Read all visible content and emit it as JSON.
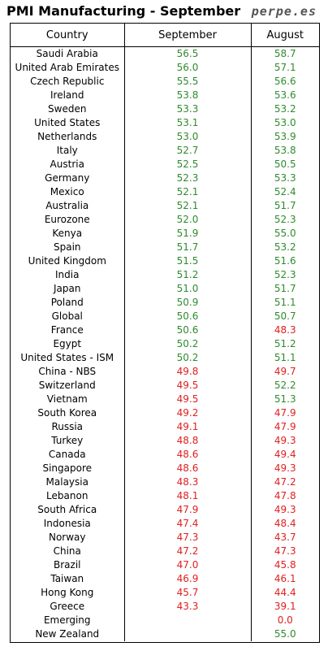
{
  "title": "PMI Manufacturing - September",
  "brand": "perpe.es",
  "colors": {
    "above_50": "#2e8b2e",
    "below_50": "#e02020"
  },
  "chart_data": {
    "type": "table",
    "columns": [
      "Country",
      "September",
      "August"
    ],
    "rows": [
      {
        "country": "Saudi Arabia",
        "september": "56.5",
        "august": "58.7"
      },
      {
        "country": "United Arab Emirates",
        "september": "56.0",
        "august": "57.1"
      },
      {
        "country": "Czech Republic",
        "september": "55.5",
        "august": "56.6"
      },
      {
        "country": "Ireland",
        "september": "53.8",
        "august": "53.6"
      },
      {
        "country": "Sweden",
        "september": "53.3",
        "august": "53.2"
      },
      {
        "country": "United States",
        "september": "53.1",
        "august": "53.0"
      },
      {
        "country": "Netherlands",
        "september": "53.0",
        "august": "53.9"
      },
      {
        "country": "Italy",
        "september": "52.7",
        "august": "53.8"
      },
      {
        "country": "Austria",
        "september": "52.5",
        "august": "50.5"
      },
      {
        "country": "Germany",
        "september": "52.3",
        "august": "53.3"
      },
      {
        "country": "Mexico",
        "september": "52.1",
        "august": "52.4"
      },
      {
        "country": "Australia",
        "september": "52.1",
        "august": "51.7"
      },
      {
        "country": "Eurozone",
        "september": "52.0",
        "august": "52.3"
      },
      {
        "country": "Kenya",
        "september": "51.9",
        "august": "55.0"
      },
      {
        "country": "Spain",
        "september": "51.7",
        "august": "53.2"
      },
      {
        "country": "United Kingdom",
        "september": "51.5",
        "august": "51.6"
      },
      {
        "country": "India",
        "september": "51.2",
        "august": "52.3"
      },
      {
        "country": "Japan",
        "september": "51.0",
        "august": "51.7"
      },
      {
        "country": "Poland",
        "september": "50.9",
        "august": "51.1"
      },
      {
        "country": "Global",
        "september": "50.6",
        "august": "50.7"
      },
      {
        "country": "France",
        "september": "50.6",
        "august": "48.3"
      },
      {
        "country": "Egypt",
        "september": "50.2",
        "august": "51.2"
      },
      {
        "country": "United States - ISM",
        "september": "50.2",
        "august": "51.1"
      },
      {
        "country": "China - NBS",
        "september": "49.8",
        "august": "49.7"
      },
      {
        "country": "Switzerland",
        "september": "49.5",
        "august": "52.2"
      },
      {
        "country": "Vietnam",
        "september": "49.5",
        "august": "51.3"
      },
      {
        "country": "South Korea",
        "september": "49.2",
        "august": "47.9"
      },
      {
        "country": "Russia",
        "september": "49.1",
        "august": "47.9"
      },
      {
        "country": "Turkey",
        "september": "48.8",
        "august": "49.3"
      },
      {
        "country": "Canada",
        "september": "48.6",
        "august": "49.4"
      },
      {
        "country": "Singapore",
        "september": "48.6",
        "august": "49.3"
      },
      {
        "country": "Malaysia",
        "september": "48.3",
        "august": "47.2"
      },
      {
        "country": "Lebanon",
        "september": "48.1",
        "august": "47.8"
      },
      {
        "country": "South Africa",
        "september": "47.9",
        "august": "49.3"
      },
      {
        "country": "Indonesia",
        "september": "47.4",
        "august": "48.4"
      },
      {
        "country": "Norway",
        "september": "47.3",
        "august": "43.7"
      },
      {
        "country": "China",
        "september": "47.2",
        "august": "47.3"
      },
      {
        "country": "Brazil",
        "september": "47.0",
        "august": "45.8"
      },
      {
        "country": "Taiwan",
        "september": "46.9",
        "august": "46.1"
      },
      {
        "country": "Hong Kong",
        "september": "45.7",
        "august": "44.4"
      },
      {
        "country": "Greece",
        "september": "43.3",
        "august": "39.1"
      },
      {
        "country": "Emerging",
        "september": "",
        "august": "0.0"
      },
      {
        "country": "New Zealand",
        "september": "",
        "august": "55.0"
      }
    ]
  }
}
